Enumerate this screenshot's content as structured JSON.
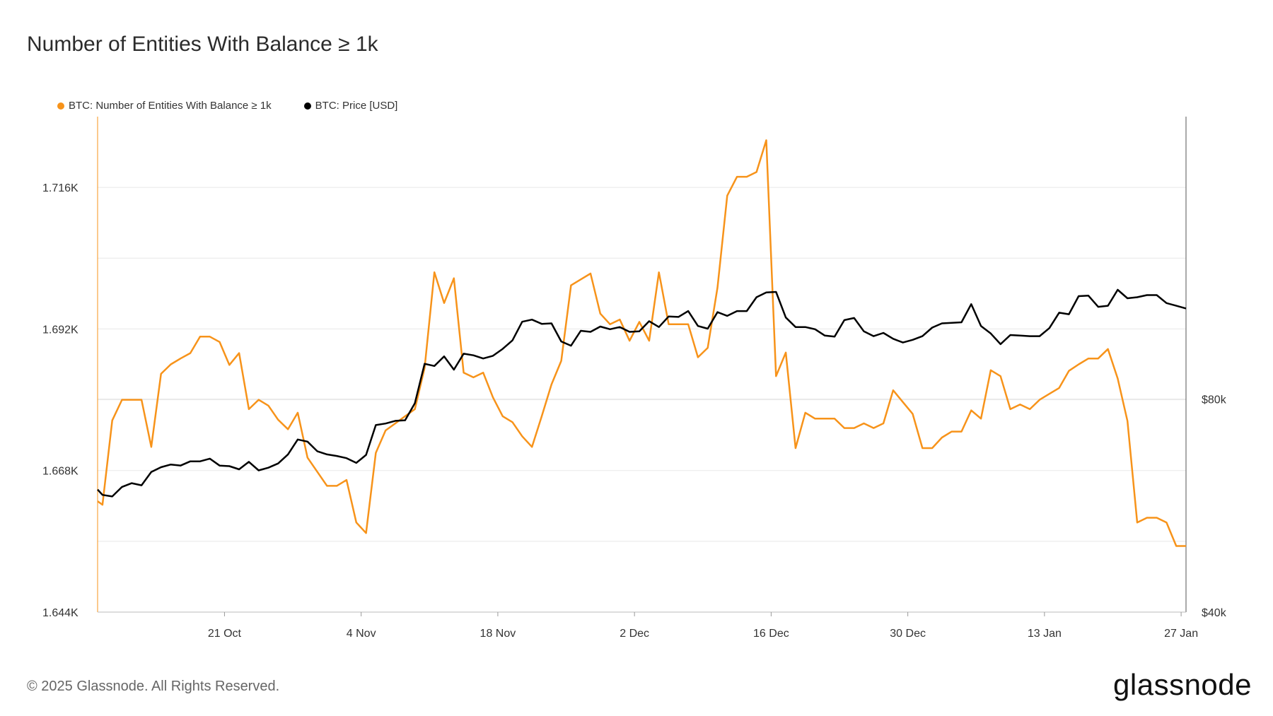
{
  "title": "Number of Entities With Balance ≥ 1k",
  "footer": "© 2025 Glassnode. All Rights Reserved.",
  "logo": "glassnode",
  "colors": {
    "entities": "#f7931a",
    "price": "#000000",
    "grid": "#e8e8e8"
  },
  "chart_data": {
    "type": "line",
    "legend": [
      {
        "name": "BTC: Number of Entities With Balance ≥ 1k",
        "color": "#f7931a"
      },
      {
        "name": "BTC: Price [USD]",
        "color": "#000000"
      }
    ],
    "x_ticks": [
      "21 Oct",
      "4 Nov",
      "18 Nov",
      "2 Dec",
      "16 Dec",
      "30 Dec",
      "13 Jan",
      "27 Jan"
    ],
    "x_tick_days": [
      13,
      27,
      41,
      55,
      69,
      83,
      97,
      111
    ],
    "x_range": [
      0,
      111.5
    ],
    "y_left_ticks": [
      "1.716K",
      "1.692K",
      "1.668K",
      "1.644K"
    ],
    "y_left_tick_values": [
      1716,
      1692,
      1668,
      1644
    ],
    "y_left_range": [
      1644,
      1728
    ],
    "y_right_ticks": [
      "$80k",
      "$40k"
    ],
    "y_right_tick_values": [
      80000,
      40000
    ],
    "y_right_range": [
      40000,
      133000
    ],
    "series": [
      {
        "name": "BTC: Number of Entities With Balance ≥ 1k",
        "axis": "left",
        "x": [
          0,
          0.5,
          1.5,
          2.5,
          3.5,
          4.5,
          5.5,
          6.5,
          7.5,
          8.5,
          9.5,
          10.5,
          11.5,
          12.5,
          13.5,
          14.5,
          15.5,
          16.5,
          17.5,
          18.5,
          19.5,
          20.5,
          21.5,
          22.5,
          23.5,
          24.5,
          25.5,
          26.5,
          27.5,
          28.5,
          29.5,
          30.5,
          31.5,
          32.5,
          33.5,
          34.5,
          35.5,
          36.5,
          37.5,
          38.5,
          39.5,
          40.5,
          41.5,
          42.5,
          43.5,
          44.5,
          45.5,
          46.5,
          47.5,
          48.5,
          49.5,
          50.5,
          51.5,
          52.5,
          53.5,
          54.5,
          55.5,
          56.5,
          57.5,
          58.5,
          59.5,
          60.5,
          61.5,
          62.5,
          63.5,
          64.5,
          65.5,
          66.5,
          67.5,
          68.5,
          69.5,
          70.5,
          71.5,
          72.5,
          73.5,
          74.5,
          75.5,
          76.5,
          77.5,
          78.5,
          79.5,
          80.5,
          81.5,
          82.5,
          83.5,
          84.5,
          85.5,
          86.5,
          87.5,
          88.5,
          89.5,
          90.5,
          91.5,
          92.5,
          93.5,
          94.5,
          95.5,
          96.5,
          97.5,
          98.5,
          99.5,
          100.5,
          101.5,
          102.5,
          103.5,
          104.5,
          105.5,
          106.5,
          107.5,
          108.5,
          109.5,
          110.5,
          111.5
        ],
        "values": [
          1662.8,
          1662.2,
          1676.5,
          1680,
          1680,
          1680,
          1672,
          1684.4,
          1686,
          1687,
          1687.9,
          1690.7,
          1690.7,
          1689.8,
          1685.9,
          1687.9,
          1678.4,
          1680,
          1679,
          1676.6,
          1675,
          1677.8,
          1670.2,
          1667.8,
          1665.4,
          1665.4,
          1666.4,
          1659.2,
          1657.4,
          1671,
          1674.8,
          1676,
          1677.2,
          1678.4,
          1685.4,
          1701.6,
          1696.4,
          1700.6,
          1684.6,
          1683.8,
          1684.6,
          1680.4,
          1677.2,
          1676.2,
          1673.8,
          1672,
          1677.2,
          1682.6,
          1686.6,
          1699.4,
          1700.4,
          1701.4,
          1694.6,
          1692.8,
          1693.6,
          1690,
          1693.2,
          1690,
          1701.6,
          1692.8,
          1692.8,
          1692.8,
          1687.2,
          1688.8,
          1699,
          1714.6,
          1717.8,
          1717.8,
          1718.6,
          1724,
          1684,
          1688,
          1671.8,
          1677.8,
          1676.8,
          1676.8,
          1676.8,
          1675.2,
          1675.2,
          1676,
          1675.2,
          1676,
          1681.6,
          1679.6,
          1677.6,
          1671.8,
          1671.8,
          1673.6,
          1674.6,
          1674.6,
          1678.2,
          1676.8,
          1685,
          1684,
          1678.4,
          1679.2,
          1678.4,
          1680,
          1681,
          1682,
          1684.9,
          1686,
          1687,
          1687,
          1688.6,
          1683.6,
          1676.4,
          1659.2,
          1660,
          1660,
          1659.2,
          1655.2,
          1655.2
        ]
      },
      {
        "name": "BTC: Price [USD]",
        "axis": "right",
        "x": [
          0,
          0.5,
          1.5,
          2.5,
          3.5,
          4.5,
          5.5,
          6.5,
          7.5,
          8.5,
          9.5,
          10.5,
          11.5,
          12.5,
          13.5,
          14.5,
          15.5,
          16.5,
          17.5,
          18.5,
          19.5,
          20.5,
          21.5,
          22.5,
          23.5,
          24.5,
          25.5,
          26.5,
          27.5,
          28.5,
          29.5,
          30.5,
          31.5,
          32.5,
          33.5,
          34.5,
          35.5,
          36.5,
          37.5,
          38.5,
          39.5,
          40.5,
          41.5,
          42.5,
          43.5,
          44.5,
          45.5,
          46.5,
          47.5,
          48.5,
          49.5,
          50.5,
          51.5,
          52.5,
          53.5,
          54.5,
          55.5,
          56.5,
          57.5,
          58.5,
          59.5,
          60.5,
          61.5,
          62.5,
          63.5,
          64.5,
          65.5,
          66.5,
          67.5,
          68.5,
          69.5,
          70.5,
          71.5,
          72.5,
          73.5,
          74.5,
          75.5,
          76.5,
          77.5,
          78.5,
          79.5,
          80.5,
          81.5,
          82.5,
          83.5,
          84.5,
          85.5,
          86.5,
          87.5,
          88.5,
          89.5,
          90.5,
          91.5,
          92.5,
          93.5,
          94.5,
          95.5,
          96.5,
          97.5,
          98.5,
          99.5,
          100.5,
          101.5,
          102.5,
          103.5,
          104.5,
          105.5,
          106.5,
          107.5,
          108.5,
          109.5,
          110.5,
          111.5
        ],
        "values": [
          63000,
          62000,
          61700,
          63500,
          64200,
          63800,
          66300,
          67200,
          67700,
          67500,
          68300,
          68300,
          68800,
          67500,
          67400,
          66800,
          68200,
          66600,
          67100,
          67900,
          69600,
          72400,
          72000,
          70200,
          69600,
          69300,
          68900,
          68000,
          69500,
          75100,
          75400,
          75900,
          76000,
          79200,
          86600,
          86200,
          88000,
          85500,
          88500,
          88200,
          87600,
          88100,
          89400,
          91000,
          94500,
          94900,
          94100,
          94200,
          90800,
          90000,
          92800,
          92600,
          93600,
          93100,
          93500,
          92600,
          92700,
          94600,
          93500,
          95500,
          95400,
          96500,
          93700,
          93200,
          96300,
          95600,
          96500,
          96500,
          99100,
          100000,
          100100,
          95300,
          93500,
          93500,
          93100,
          91900,
          91700,
          94800,
          95200,
          92700,
          91800,
          92400,
          91300,
          90600,
          91100,
          91800,
          93400,
          94200,
          94300,
          94400,
          97800,
          93700,
          92300,
          90300,
          92000,
          91900,
          91800,
          91800,
          93300,
          96200,
          95900,
          99300,
          99400,
          97300,
          97500,
          100500,
          98900,
          99100,
          99500,
          99500,
          98000,
          97500,
          97000
        ]
      }
    ]
  }
}
